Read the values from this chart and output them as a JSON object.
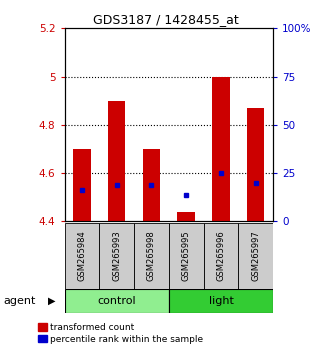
{
  "title": "GDS3187 / 1428455_at",
  "samples": [
    "GSM265984",
    "GSM265993",
    "GSM265998",
    "GSM265995",
    "GSM265996",
    "GSM265997"
  ],
  "transformed_counts": [
    4.7,
    4.9,
    4.7,
    4.44,
    5.0,
    4.87
  ],
  "percentile_ranks": [
    4.53,
    4.55,
    4.55,
    4.51,
    4.6,
    4.56
  ],
  "ylim_left": [
    4.4,
    5.2
  ],
  "ylim_right": [
    0,
    100
  ],
  "yticks_left": [
    4.4,
    4.6,
    4.8,
    5.0,
    5.2
  ],
  "ytick_labels_left": [
    "4.4",
    "4.6",
    "4.8",
    "5",
    "5.2"
  ],
  "yticks_right": [
    0,
    25,
    50,
    75,
    100
  ],
  "ytick_labels_right": [
    "0",
    "25",
    "50",
    "75",
    "100%"
  ],
  "hlines": [
    4.6,
    4.8,
    5.0
  ],
  "bar_color": "#CC0000",
  "dot_color": "#0000CC",
  "bar_bottom": 4.4,
  "bar_width": 0.5,
  "left_color": "#CC0000",
  "right_color": "#0000CC",
  "groups_info": [
    {
      "label": "control",
      "start": 0,
      "end": 3,
      "color": "#90EE90"
    },
    {
      "label": "light",
      "start": 3,
      "end": 6,
      "color": "#33CC33"
    }
  ],
  "agent_label": "agent"
}
